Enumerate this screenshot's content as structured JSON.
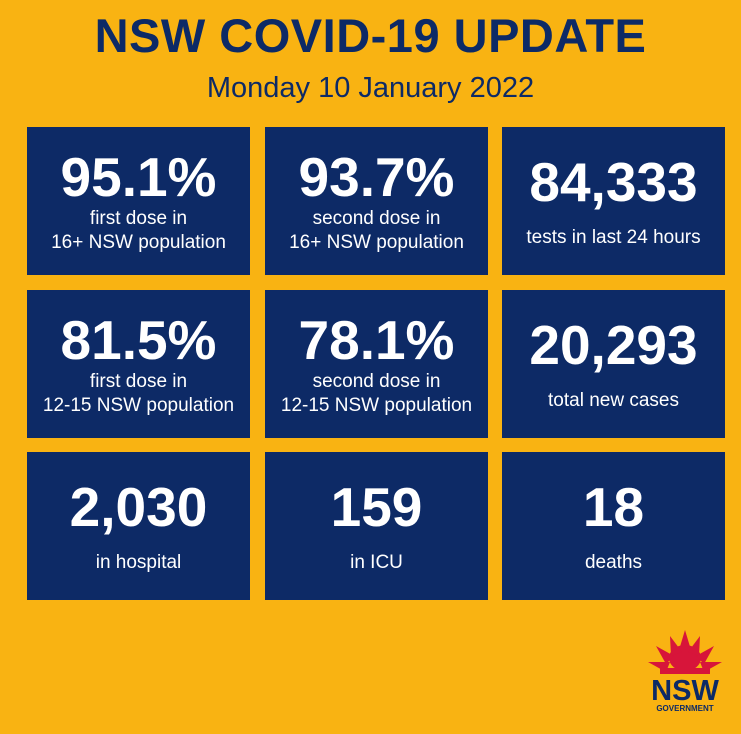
{
  "header": {
    "title": "NSW COVID-19 UPDATE",
    "subtitle": "Monday 10 January 2022"
  },
  "tiles": [
    {
      "value": "95.1%",
      "label": [
        "first dose in",
        "16+ NSW population"
      ]
    },
    {
      "value": "93.7%",
      "label": [
        "second dose in",
        "16+ NSW population"
      ]
    },
    {
      "value": "84,333",
      "label": [
        "tests in last 24 hours"
      ]
    },
    {
      "value": "81.5%",
      "label": [
        "first dose in",
        "12-15 NSW population"
      ]
    },
    {
      "value": "78.1%",
      "label": [
        "second dose in",
        "12-15 NSW population"
      ]
    },
    {
      "value": "20,293",
      "label": [
        "total new cases"
      ]
    },
    {
      "value": "2,030",
      "label": [
        "in hospital"
      ]
    },
    {
      "value": "159",
      "label": [
        "in ICU"
      ]
    },
    {
      "value": "18",
      "label": [
        "deaths"
      ]
    }
  ],
  "logo": {
    "name": "NSW",
    "sub": "GOVERNMENT"
  }
}
